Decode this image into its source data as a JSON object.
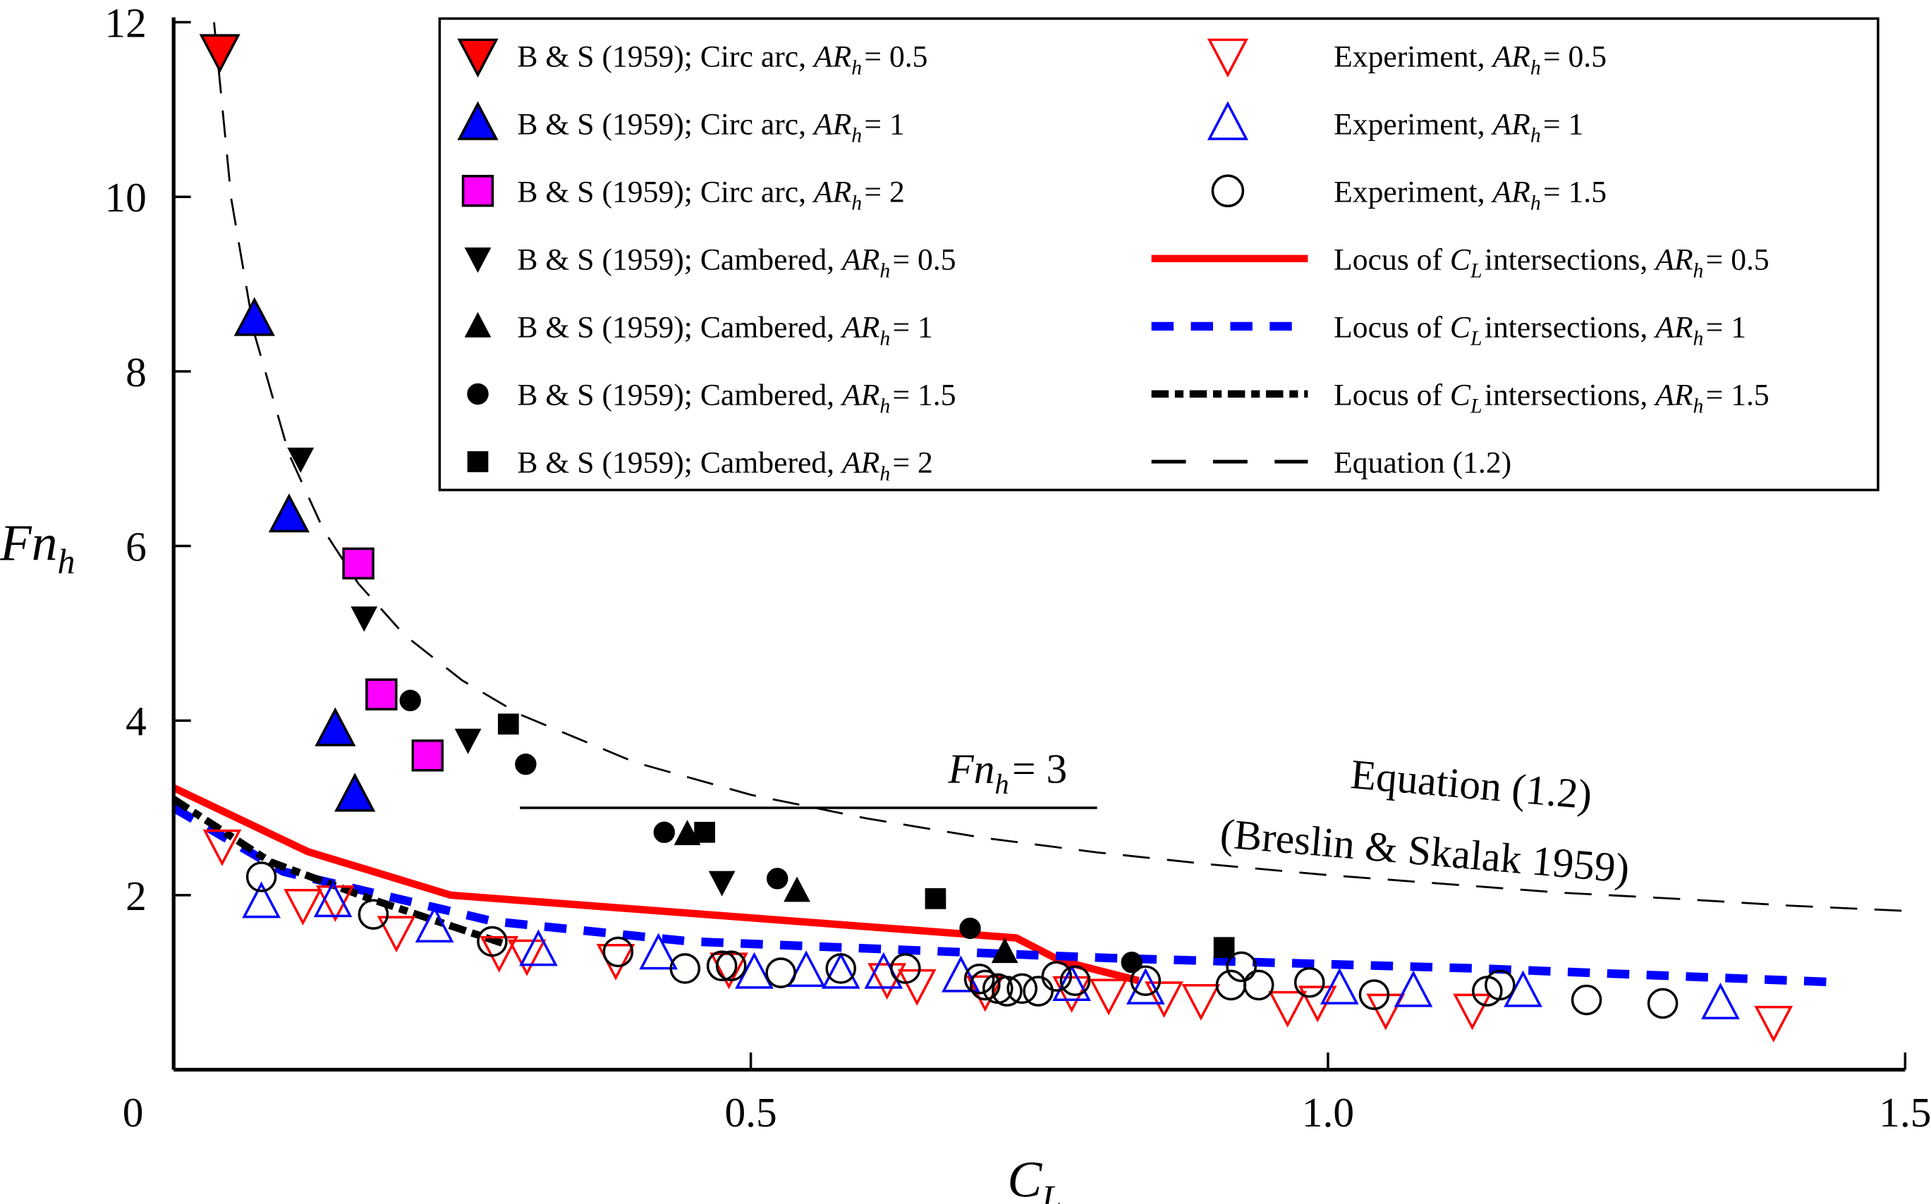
{
  "chart_data": {
    "type": "scatter",
    "xlabel": {
      "main": "C",
      "sub": "L"
    },
    "ylabel": {
      "main": "Fn",
      "sub": "h"
    },
    "xlim": [
      0,
      1.5
    ],
    "ylim": [
      0,
      12
    ],
    "x_ticks": [
      {
        "v": 0,
        "label": "0"
      },
      {
        "v": 0.5,
        "label": "0.5"
      },
      {
        "v": 1.0,
        "label": "1.0"
      },
      {
        "v": 1.5,
        "label": "1.5"
      }
    ],
    "y_ticks": [
      {
        "v": 2,
        "label": "2"
      },
      {
        "v": 4,
        "label": "4"
      },
      {
        "v": 6,
        "label": "6"
      },
      {
        "v": 8,
        "label": "8"
      },
      {
        "v": 10,
        "label": "10"
      },
      {
        "v": 12,
        "label": "12"
      }
    ],
    "grid": false,
    "legend_placement": "top-right",
    "series": [
      {
        "id": "bs-circ-05",
        "marker": "triangle-down",
        "color": "#ff0000",
        "filled": true,
        "outline": "#000000",
        "legend": [
          {
            "t": "B & S (1959); Circ arc, "
          },
          {
            "m": "AR",
            "s": "h"
          },
          {
            "t": " = 0.5"
          }
        ],
        "points": [
          [
            0.04,
            11.67
          ]
        ]
      },
      {
        "id": "bs-circ-1",
        "marker": "triangle-up",
        "color": "#0000ff",
        "filled": true,
        "outline": "#000000",
        "legend": [
          {
            "t": "B & S (1959); Circ arc, "
          },
          {
            "m": "AR",
            "s": "h"
          },
          {
            "t": " = 1"
          }
        ],
        "points": [
          [
            0.07,
            8.6
          ],
          [
            0.1,
            6.35
          ],
          [
            0.14,
            3.9
          ],
          [
            0.157,
            3.15
          ]
        ]
      },
      {
        "id": "bs-circ-2",
        "marker": "square",
        "color": "#ff00ff",
        "filled": true,
        "outline": "#000000",
        "legend": [
          {
            "t": "B & S (1959); Circ arc, "
          },
          {
            "m": "AR",
            "s": "h"
          },
          {
            "t": " = 2"
          }
        ],
        "points": [
          [
            0.16,
            5.8
          ],
          [
            0.18,
            4.3
          ],
          [
            0.22,
            3.6
          ]
        ]
      },
      {
        "id": "bs-camb-05",
        "marker": "triangle-down",
        "color": "#000000",
        "filled": true,
        "small": true,
        "legend": [
          {
            "t": "B & S (1959); Cambered, "
          },
          {
            "m": "AR",
            "s": "h"
          },
          {
            "t": " = 0.5"
          }
        ],
        "points": [
          [
            0.11,
            7.0
          ],
          [
            0.165,
            5.18
          ],
          [
            0.255,
            3.78
          ],
          [
            0.475,
            2.15
          ]
        ]
      },
      {
        "id": "bs-camb-1",
        "marker": "triangle-up",
        "color": "#000000",
        "filled": true,
        "small": true,
        "legend": [
          {
            "t": "B & S (1959); Cambered, "
          },
          {
            "m": "AR",
            "s": "h"
          },
          {
            "t": " = 1"
          }
        ],
        "points": [
          [
            0.445,
            2.7
          ],
          [
            0.54,
            2.05
          ],
          [
            0.72,
            1.35
          ]
        ]
      },
      {
        "id": "bs-camb-15",
        "marker": "circle",
        "color": "#000000",
        "filled": true,
        "small": true,
        "legend": [
          {
            "t": "B & S (1959); Cambered, "
          },
          {
            "m": "AR",
            "s": "h"
          },
          {
            "t": " = 1.5"
          }
        ],
        "points": [
          [
            0.205,
            4.23
          ],
          [
            0.305,
            3.5
          ],
          [
            0.425,
            2.72
          ],
          [
            0.523,
            2.19
          ],
          [
            0.69,
            1.62
          ],
          [
            0.83,
            1.23
          ]
        ]
      },
      {
        "id": "bs-camb-2",
        "marker": "square",
        "color": "#000000",
        "filled": true,
        "small": true,
        "legend": [
          {
            "t": "B & S (1959); Cambered, "
          },
          {
            "m": "AR",
            "s": "h"
          },
          {
            "t": " = 2"
          }
        ],
        "points": [
          [
            0.29,
            3.96
          ],
          [
            0.46,
            2.72
          ],
          [
            0.66,
            1.96
          ],
          [
            0.91,
            1.4
          ]
        ]
      },
      {
        "id": "exp-05",
        "marker": "triangle-down",
        "color": "#ff0000",
        "filled": false,
        "legend": [
          {
            "t": "Experiment, "
          },
          {
            "m": "AR",
            "s": "h"
          },
          {
            "t": " = 0.5"
          }
        ],
        "points": [
          [
            0.042,
            2.57
          ],
          [
            0.112,
            1.89
          ],
          [
            0.14,
            1.93
          ],
          [
            0.193,
            1.58
          ],
          [
            0.282,
            1.35
          ],
          [
            0.306,
            1.31
          ],
          [
            0.383,
            1.26
          ],
          [
            0.481,
            1.16
          ],
          [
            0.618,
            1.04
          ],
          [
            0.644,
            0.97
          ],
          [
            0.703,
            0.9
          ],
          [
            0.778,
            0.89
          ],
          [
            0.81,
            0.86
          ],
          [
            0.858,
            0.83
          ],
          [
            0.89,
            0.8
          ],
          [
            0.965,
            0.72
          ],
          [
            0.991,
            0.78
          ],
          [
            1.05,
            0.69
          ],
          [
            1.125,
            0.69
          ],
          [
            1.386,
            0.55
          ]
        ]
      },
      {
        "id": "exp-1",
        "marker": "triangle-up",
        "color": "#0000ff",
        "filled": false,
        "legend": [
          {
            "t": "Experiment, "
          },
          {
            "m": "AR",
            "s": "h"
          },
          {
            "t": " = 1"
          }
        ],
        "points": [
          [
            0.076,
            1.92
          ],
          [
            0.138,
            1.93
          ],
          [
            0.226,
            1.64
          ],
          [
            0.316,
            1.37
          ],
          [
            0.42,
            1.33
          ],
          [
            0.503,
            1.11
          ],
          [
            0.548,
            1.13
          ],
          [
            0.578,
            1.11
          ],
          [
            0.615,
            1.11
          ],
          [
            0.682,
            1.07
          ],
          [
            0.778,
            0.97
          ],
          [
            0.842,
            0.93
          ],
          [
            1.01,
            0.93
          ],
          [
            1.074,
            0.9
          ],
          [
            1.169,
            0.9
          ],
          [
            1.34,
            0.76
          ]
        ]
      },
      {
        "id": "exp-15",
        "marker": "circle",
        "color": "#000000",
        "filled": false,
        "legend": [
          {
            "t": "Experiment, "
          },
          {
            "m": "AR",
            "s": "h"
          },
          {
            "t": " = 1.5"
          }
        ],
        "points": [
          [
            0.076,
            2.21
          ],
          [
            0.173,
            1.78
          ],
          [
            0.276,
            1.47
          ],
          [
            0.385,
            1.35
          ],
          [
            0.443,
            1.16
          ],
          [
            0.475,
            1.19
          ],
          [
            0.483,
            1.19
          ],
          [
            0.526,
            1.11
          ],
          [
            0.578,
            1.16
          ],
          [
            0.634,
            1.16
          ],
          [
            0.698,
            1.04
          ],
          [
            0.703,
            0.97
          ],
          [
            0.714,
            0.93
          ],
          [
            0.722,
            0.9
          ],
          [
            0.735,
            0.93
          ],
          [
            0.749,
            0.9
          ],
          [
            0.765,
            1.07
          ],
          [
            0.781,
            1.02
          ],
          [
            0.842,
            1.02
          ],
          [
            0.916,
            0.97
          ],
          [
            0.925,
            1.18
          ],
          [
            0.94,
            0.97
          ],
          [
            0.984,
            1.0
          ],
          [
            1.04,
            0.86
          ],
          [
            1.138,
            0.9
          ],
          [
            1.149,
            0.97
          ],
          [
            1.224,
            0.8
          ],
          [
            1.29,
            0.76
          ]
        ]
      }
    ],
    "lines": [
      {
        "id": "locus-05",
        "color": "#ff0000",
        "style": "solid",
        "legend": [
          {
            "t": "Locus of "
          },
          {
            "m": "C",
            "s": "L"
          },
          {
            "t": " intersections, "
          },
          {
            "m": "AR",
            "s": "h"
          },
          {
            "t": " = 0.5"
          }
        ],
        "points": [
          [
            0,
            3.23
          ],
          [
            0.116,
            2.5
          ],
          [
            0.24,
            2.0
          ],
          [
            0.73,
            1.51
          ],
          [
            0.768,
            1.25
          ],
          [
            0.836,
            1.02
          ]
        ]
      },
      {
        "id": "locus-1",
        "color": "#0000ff",
        "style": "dashed",
        "legend": [
          {
            "t": "Locus of "
          },
          {
            "m": "C",
            "s": "L"
          },
          {
            "t": " intersections, "
          },
          {
            "m": "AR",
            "s": "h"
          },
          {
            "t": " = 1"
          }
        ],
        "points": [
          [
            0,
            3.0
          ],
          [
            0.095,
            2.27
          ],
          [
            0.277,
            1.7
          ],
          [
            0.447,
            1.47
          ],
          [
            0.81,
            1.28
          ],
          [
            1.13,
            1.16
          ],
          [
            1.445,
            1.0
          ]
        ]
      },
      {
        "id": "locus-15",
        "color": "#000000",
        "style": "dash-dot",
        "legend": [
          {
            "t": "Locus of "
          },
          {
            "m": "C",
            "s": "L"
          },
          {
            "t": " intersections, "
          },
          {
            "m": "AR",
            "s": "h"
          },
          {
            "t": " = 1.5"
          }
        ],
        "points": [
          [
            0,
            3.1
          ],
          [
            0.084,
            2.38
          ],
          [
            0.17,
            1.96
          ],
          [
            0.287,
            1.44
          ]
        ]
      },
      {
        "id": "equation",
        "color": "#000000",
        "style": "long-dash",
        "legend": [
          {
            "t": "Equation (1.2)"
          }
        ],
        "points": [
          [
            0.035,
            12.0
          ],
          [
            0.05,
            9.97
          ],
          [
            0.07,
            8.43
          ],
          [
            0.1,
            7.05
          ],
          [
            0.13,
            6.18
          ],
          [
            0.16,
            5.57
          ],
          [
            0.2,
            4.98
          ],
          [
            0.25,
            4.46
          ],
          [
            0.3,
            4.07
          ],
          [
            0.4,
            3.52
          ],
          [
            0.5,
            3.15
          ],
          [
            0.6,
            2.88
          ],
          [
            0.7,
            2.66
          ],
          [
            0.8,
            2.49
          ],
          [
            0.9,
            2.35
          ],
          [
            1.0,
            2.23
          ],
          [
            1.1,
            2.13
          ],
          [
            1.2,
            2.03
          ],
          [
            1.3,
            1.96
          ],
          [
            1.4,
            1.88
          ],
          [
            1.5,
            1.82
          ]
        ]
      },
      {
        "id": "fn3",
        "color": "#000000",
        "style": "solid-thin",
        "points": [
          [
            0.3,
            3.0
          ],
          [
            0.8,
            3.0
          ]
        ]
      }
    ],
    "annotations": {
      "fn3": [
        {
          "m": "Fn",
          "s": "h"
        },
        {
          "t": " = 3"
        }
      ],
      "equation_line1": "Equation (1.2)",
      "equation_line2": "(Breslin & Skalak 1959)"
    }
  }
}
